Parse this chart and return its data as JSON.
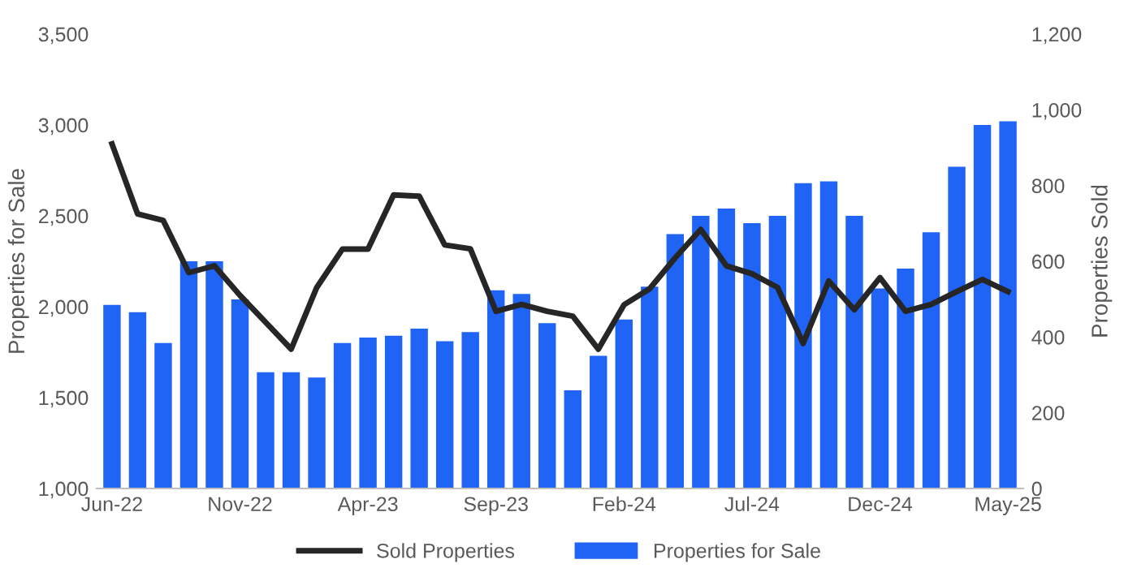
{
  "chart_data": {
    "type": "bar",
    "ylabel": "Properties for Sale",
    "y2label": "Properties Sold",
    "categories": [
      "Jun-22",
      null,
      null,
      null,
      null,
      "Nov-22",
      null,
      null,
      null,
      null,
      "Apr-23",
      null,
      null,
      null,
      null,
      "Sep-23",
      null,
      null,
      null,
      null,
      "Feb-24",
      null,
      null,
      null,
      null,
      "Jul-24",
      null,
      null,
      null,
      null,
      "Dec-24",
      null,
      null,
      null,
      null,
      "May-25"
    ],
    "series": [
      {
        "name": "Sold Properties",
        "type": "line",
        "axis": "y2",
        "color": "#262626",
        "values": [
          910,
          725,
          708,
          570,
          588,
          510,
          439,
          368,
          531,
          632,
          632,
          775,
          772,
          643,
          633,
          468,
          486,
          468,
          455,
          368,
          485,
          527,
          609,
          684,
          588,
          567,
          531,
          383,
          548,
          472,
          557,
          468,
          486,
          520,
          552,
          520
        ]
      },
      {
        "name": "Properties for Sale",
        "color": "#1f64f5",
        "values": [
          2010,
          1970,
          1800,
          2250,
          2250,
          2040,
          1640,
          1640,
          1610,
          1800,
          1830,
          1840,
          1880,
          1810,
          1860,
          2090,
          2070,
          1910,
          1540,
          1730,
          1930,
          2110,
          2400,
          2500,
          2540,
          2460,
          2500,
          2680,
          2690,
          2500,
          2100,
          2210,
          2410,
          2770,
          3000,
          3020
        ]
      }
    ],
    "ylim": [
      1000,
      3500
    ],
    "yticks": [
      {
        "value": 1000,
        "label": "1,000"
      },
      {
        "value": 1500,
        "label": "1,500"
      },
      {
        "value": 2000,
        "label": "2,000"
      },
      {
        "value": 2500,
        "label": "2,500"
      },
      {
        "value": 3000,
        "label": "3,000"
      },
      {
        "value": 3500,
        "label": "3,500"
      }
    ],
    "y2lim": [
      0,
      1200
    ],
    "y2ticks": [
      0,
      200,
      400,
      600,
      800,
      {
        "value": 1000,
        "label": "1,000"
      },
      {
        "value": 1200,
        "label": "1,200"
      }
    ],
    "legend": "bottom",
    "grid": false,
    "marker": "none",
    "line_style": "solid"
  }
}
